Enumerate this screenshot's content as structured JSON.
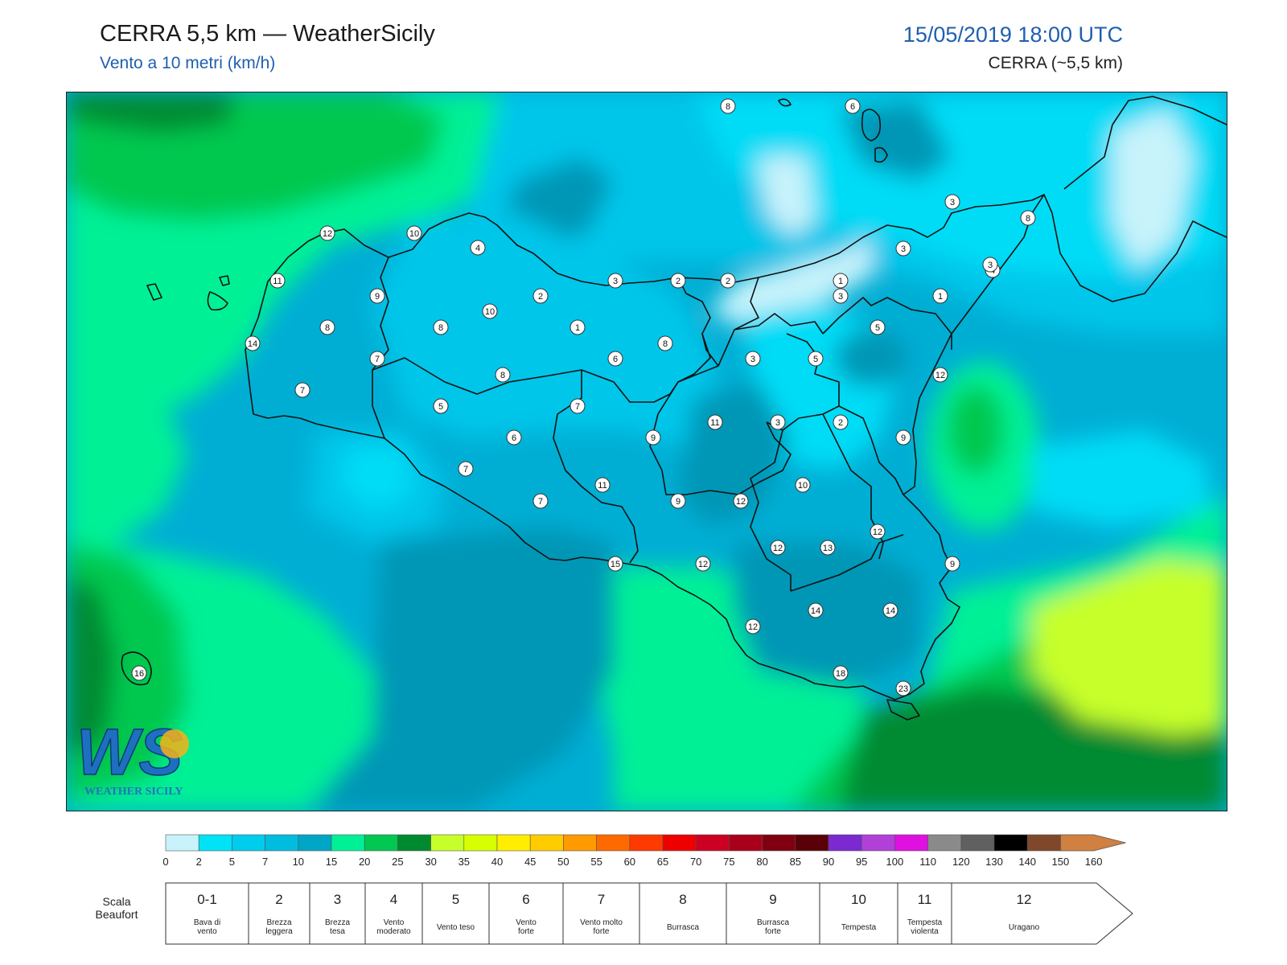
{
  "header": {
    "title": "CERRA 5,5 km — WeatherSicily",
    "subtitle": "Vento a 10 metri (km/h)",
    "datetime": "15/05/2019 18:00 UTC",
    "model": "CERRA (~5,5 km)"
  },
  "logo": {
    "text": "WEATHER SICILY",
    "mark": "WS"
  },
  "colors": {
    "very_light": "#c8f3fb",
    "light_cyan": "#00dcf6",
    "cyan": "#00c6ea",
    "mid_blue": "#00aed4",
    "dark_teal": "#0096b6",
    "aqua_green": "#00f096",
    "green": "#00c850",
    "dark_green": "#008a30",
    "yellow_green": "#c6ff2a",
    "coast": "#111111"
  },
  "map": {
    "station_labels": [
      "8",
      "6",
      "3",
      "8",
      "12",
      "10",
      "4",
      "3",
      "3",
      "2",
      "2",
      "1",
      "4",
      "3",
      "11",
      "9",
      "2",
      "10",
      "1",
      "3",
      "1",
      "14",
      "8",
      "8",
      "7",
      "6",
      "8",
      "3",
      "5",
      "5",
      "12",
      "7",
      "5",
      "8",
      "7",
      "11",
      "3",
      "2",
      "5",
      "6",
      "9",
      "9",
      "7",
      "11",
      "9",
      "12",
      "10",
      "12",
      "7",
      "12",
      "13",
      "15",
      "12",
      "9",
      "14",
      "14",
      "12",
      "16",
      "18",
      "23"
    ]
  },
  "legend": {
    "colors": [
      "#c8f3fb",
      "#00e3f6",
      "#00cdee",
      "#00bde0",
      "#00a6c6",
      "#00f096",
      "#00c850",
      "#008a30",
      "#c6ff2a",
      "#d8ff00",
      "#ffee00",
      "#ffcc00",
      "#ff9a00",
      "#ff6a00",
      "#ff3a00",
      "#ee0000",
      "#cc0022",
      "#a8001a",
      "#800010",
      "#5a0008",
      "#7a2ad0",
      "#b040d8",
      "#e010e0",
      "#8a8a8a",
      "#606060",
      "#000000",
      "#80482a",
      "#d08040"
    ],
    "ticks": [
      "0",
      "2",
      "5",
      "7",
      "10",
      "15",
      "20",
      "25",
      "30",
      "35",
      "40",
      "45",
      "50",
      "55",
      "60",
      "65",
      "70",
      "75",
      "80",
      "85",
      "90",
      "95",
      "100",
      "110",
      "120",
      "130",
      "140",
      "150",
      "160"
    ],
    "scala_label_1": "Scala",
    "scala_label_2": "Beaufort",
    "beaufort": [
      {
        "num": "0-1",
        "l1": "Bava di",
        "l2": "vento"
      },
      {
        "num": "2",
        "l1": "Brezza",
        "l2": "leggera"
      },
      {
        "num": "3",
        "l1": "Brezza",
        "l2": "tesa"
      },
      {
        "num": "4",
        "l1": "Vento",
        "l2": "moderato"
      },
      {
        "num": "5",
        "l1": "Vento teso",
        "l2": ""
      },
      {
        "num": "6",
        "l1": "Vento",
        "l2": "forte"
      },
      {
        "num": "7",
        "l1": "Vento molto",
        "l2": "forte"
      },
      {
        "num": "8",
        "l1": "Burrasca",
        "l2": ""
      },
      {
        "num": "9",
        "l1": "Burrasca",
        "l2": "forte"
      },
      {
        "num": "10",
        "l1": "Tempesta",
        "l2": ""
      },
      {
        "num": "11",
        "l1": "Tempesta",
        "l2": "violenta"
      },
      {
        "num": "12",
        "l1": "Uragano",
        "l2": ""
      }
    ]
  }
}
